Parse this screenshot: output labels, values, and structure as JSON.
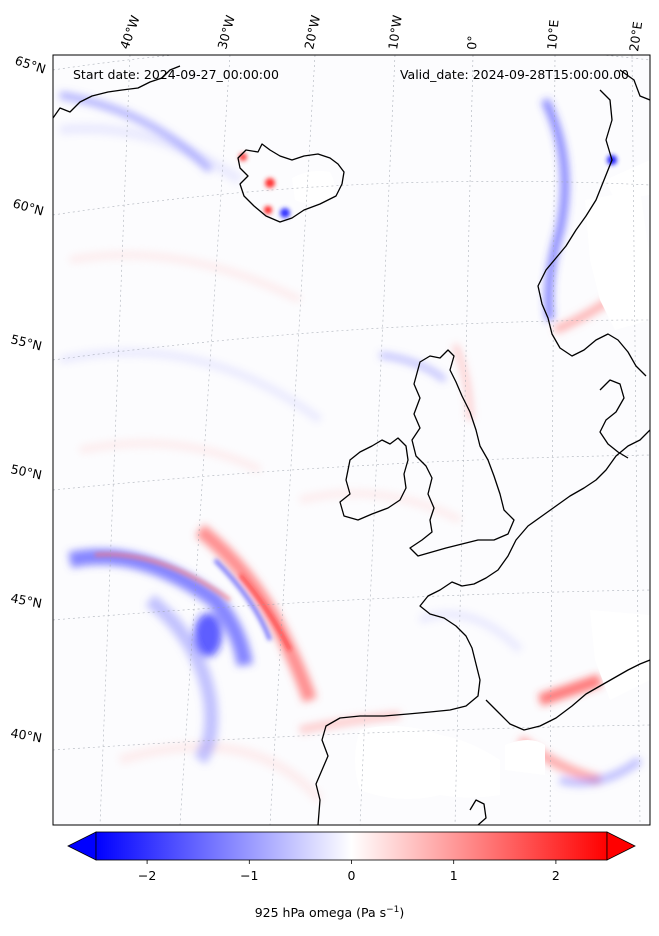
{
  "header": {
    "start_label": "Start date: 2024-09-27_00:00:00",
    "valid_label": "Valid_date: 2024-09-28T15:00:00.00"
  },
  "map": {
    "projection": "lambert-conformal",
    "region": "North Atlantic / Europe",
    "field": "925 hPa omega",
    "colormap": "bwr",
    "features": [
      "iceland",
      "ireland",
      "great-britain",
      "norway",
      "france",
      "iberia",
      "denmark"
    ],
    "longitude_labels": [
      "40°W",
      "30°W",
      "20°W",
      "10°W",
      "0°",
      "10°E",
      "20°E"
    ],
    "latitude_labels": [
      "65°N",
      "60°N",
      "55°N",
      "50°N",
      "45°N",
      "40°N"
    ]
  },
  "colorbar": {
    "label_text": "925 hPa omega (Pa s",
    "label_exponent": "−1",
    "label_suffix": ")",
    "vmin": -2.5,
    "vmax": 2.5,
    "extend": "both",
    "ticks": [
      "−2",
      "−1",
      "0",
      "1",
      "2"
    ],
    "tick_values": [
      -2,
      -1,
      0,
      1,
      2
    ],
    "colors": {
      "negative": "#0000ff",
      "zero": "#ffffff",
      "positive": "#ff0000"
    }
  }
}
